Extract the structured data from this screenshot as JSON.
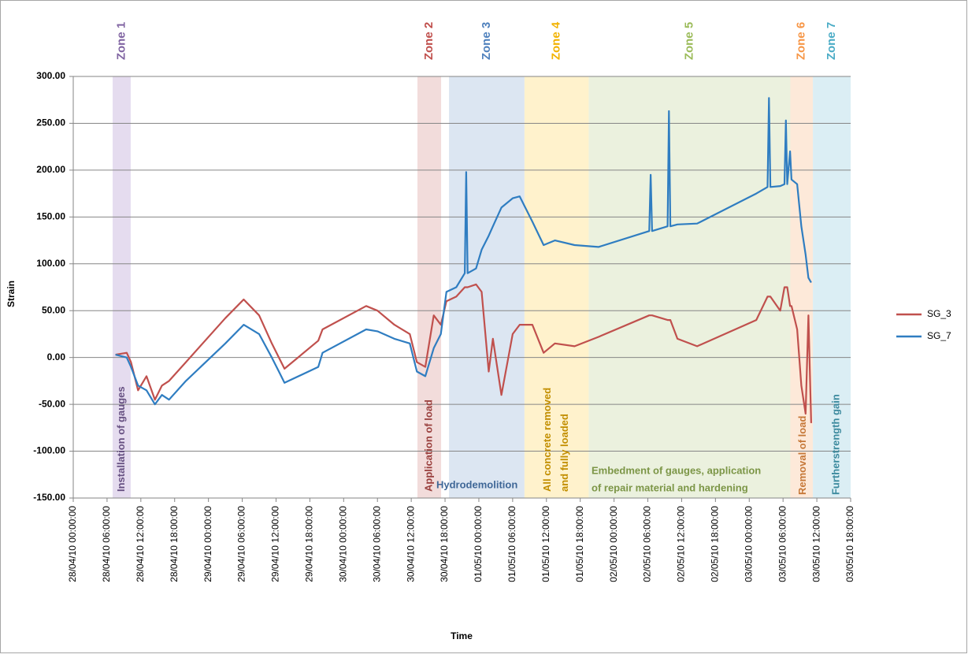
{
  "chart_data": {
    "type": "line",
    "x_label": "Time",
    "y_label": "Strain",
    "xlim": [
      "2010-04-28 00:00",
      "2010-05-03 18:00"
    ],
    "xticks": [
      {
        "value": "2010-04-28 00:00",
        "label": "28/04/10 00:00:00"
      },
      {
        "value": "2010-04-28 06:00",
        "label": "28/04/10 06:00:00"
      },
      {
        "value": "2010-04-28 12:00",
        "label": "28/04/10 12:00:00"
      },
      {
        "value": "2010-04-28 18:00",
        "label": "28/04/10 18:00:00"
      },
      {
        "value": "2010-04-29 00:00",
        "label": "29/04/10 00:00:00"
      },
      {
        "value": "2010-04-29 06:00",
        "label": "29/04/10 06:00:00"
      },
      {
        "value": "2010-04-29 12:00",
        "label": "29/04/10 12:00:00"
      },
      {
        "value": "2010-04-29 18:00",
        "label": "29/04/10 18:00:00"
      },
      {
        "value": "2010-04-30 00:00",
        "label": "30/04/10 00:00:00"
      },
      {
        "value": "2010-04-30 06:00",
        "label": "30/04/10 06:00:00"
      },
      {
        "value": "2010-04-30 12:00",
        "label": "30/04/10 12:00:00"
      },
      {
        "value": "2010-04-30 18:00",
        "label": "30/04/10 18:00:00"
      },
      {
        "value": "2010-05-01 00:00",
        "label": "01/05/10 00:00:00"
      },
      {
        "value": "2010-05-01 06:00",
        "label": "01/05/10 06:00:00"
      },
      {
        "value": "2010-05-01 12:00",
        "label": "01/05/10 12:00:00"
      },
      {
        "value": "2010-05-01 18:00",
        "label": "01/05/10 18:00:00"
      },
      {
        "value": "2010-05-02 00:00",
        "label": "02/05/10 00:00:00"
      },
      {
        "value": "2010-05-02 06:00",
        "label": "02/05/10 06:00:00"
      },
      {
        "value": "2010-05-02 12:00",
        "label": "02/05/10 12:00:00"
      },
      {
        "value": "2010-05-02 18:00",
        "label": "02/05/10 18:00:00"
      },
      {
        "value": "2010-05-03 00:00",
        "label": "03/05/10 00:00:00"
      },
      {
        "value": "2010-05-03 06:00",
        "label": "03/05/10 06:00:00"
      },
      {
        "value": "2010-05-03 12:00",
        "label": "03/05/10 12:00:00"
      },
      {
        "value": "2010-05-03 18:00",
        "label": "03/05/10 18:00:00"
      }
    ],
    "ylim": [
      -150,
      300
    ],
    "yticks": [
      {
        "value": -150,
        "label": "-150.00"
      },
      {
        "value": -100,
        "label": "-100.00"
      },
      {
        "value": -50,
        "label": "-50.00"
      },
      {
        "value": 0,
        "label": "0.00"
      },
      {
        "value": 50,
        "label": "50.00"
      },
      {
        "value": 100,
        "label": "100.00"
      },
      {
        "value": 150,
        "label": "150.00"
      },
      {
        "value": 200,
        "label": "200.00"
      },
      {
        "value": 250,
        "label": "250.00"
      },
      {
        "value": 300,
        "label": "300.00"
      }
    ],
    "grid": true,
    "legend": "right",
    "zones": [
      {
        "label": "Zone 1",
        "start": "2010-04-28 07:00",
        "end": "2010-04-28 10:12",
        "color": "#e5dcef",
        "text_color": "#8064a2",
        "annotation": [
          "Installation of gauges"
        ]
      },
      {
        "label": "Zone 2",
        "start": "2010-04-30 13:06",
        "end": "2010-04-30 17:18",
        "color": "#f2dcdb",
        "text_color": "#c0504d",
        "annotation": [
          "Application of load"
        ]
      },
      {
        "label": "Zone 3",
        "start": "2010-04-30 18:42",
        "end": "2010-05-01 08:06",
        "color": "#dce6f2",
        "text_color": "#4f81bd",
        "annotation": [
          "Hydrodemolition"
        ]
      },
      {
        "label": "Zone 4",
        "start": "2010-05-01 08:06",
        "end": "2010-05-01 19:30",
        "color": "#fff2cc",
        "text_color": "#f2b200",
        "annotation": [
          "All concrete removed",
          "and fully loaded"
        ]
      },
      {
        "label": "Zone 5",
        "start": "2010-05-01 19:30",
        "end": "2010-05-03 07:18",
        "color": "#ebf1de",
        "text_color": "#9bbb59",
        "annotation": [
          "Embedment of gauges, application",
          "of repair material and hardening"
        ]
      },
      {
        "label": "Zone 6",
        "start": "2010-05-03 07:18",
        "end": "2010-05-03 11:18",
        "color": "#fde9d9",
        "text_color": "#f79646",
        "annotation": [
          "Removal of load"
        ]
      },
      {
        "label": "Zone 7",
        "start": "2010-05-03 11:18",
        "end": "2010-05-03 18:00",
        "color": "#dbeef4",
        "text_color": "#4bacc6",
        "annotation": [
          "Furtherstrength gain"
        ]
      }
    ],
    "x": [
      "2010-04-28 07:30",
      "2010-04-28 09:30",
      "2010-04-28 10:15",
      "2010-04-28 11:30",
      "2010-04-28 13:00",
      "2010-04-28 14:30",
      "2010-04-28 15:45",
      "2010-04-28 17:00",
      "2010-04-28 20:00",
      "2010-04-29 03:00",
      "2010-04-29 06:15",
      "2010-04-29 09:00",
      "2010-04-29 11:15",
      "2010-04-29 12:30",
      "2010-04-29 13:30",
      "2010-04-29 19:30",
      "2010-04-29 20:15",
      "2010-04-30 04:00",
      "2010-04-30 06:00",
      "2010-04-30 09:00",
      "2010-04-30 11:45",
      "2010-04-30 13:00",
      "2010-04-30 14:30",
      "2010-04-30 16:00",
      "2010-04-30 17:15",
      "2010-04-30 18:15",
      "2010-04-30 20:00",
      "2010-04-30 21:30",
      "2010-04-30 21:45",
      "2010-04-30 22:00",
      "2010-04-30 23:30",
      "2010-05-01 00:30",
      "2010-05-01 01:45",
      "2010-05-01 02:30",
      "2010-05-01 04:00",
      "2010-05-01 06:00",
      "2010-05-01 07:15",
      "2010-05-01 09:30",
      "2010-05-01 11:30",
      "2010-05-01 13:30",
      "2010-05-01 17:00",
      "2010-05-01 21:15",
      "2010-05-02 06:15",
      "2010-05-02 06:30",
      "2010-05-02 06:45",
      "2010-05-02 09:30",
      "2010-05-02 09:45",
      "2010-05-02 10:00",
      "2010-05-02 11:15",
      "2010-05-02 14:45",
      "2010-05-03 01:15",
      "2010-05-03 03:15",
      "2010-05-03 03:30",
      "2010-05-03 03:45",
      "2010-05-03 05:30",
      "2010-05-03 06:15",
      "2010-05-03 06:30",
      "2010-05-03 06:45",
      "2010-05-03 07:15",
      "2010-05-03 07:30",
      "2010-05-03 08:30",
      "2010-05-03 09:15",
      "2010-05-03 10:00",
      "2010-05-03 10:30",
      "2010-05-03 11:00"
    ],
    "series": [
      {
        "name": "SG_3",
        "color": "#c0504d",
        "values": [
          3,
          5,
          -5,
          -35,
          -20,
          -45,
          -30,
          -25,
          -5,
          42,
          62,
          45,
          15,
          0,
          -12,
          18,
          30,
          55,
          50,
          35,
          25,
          -5,
          -10,
          45,
          35,
          60,
          65,
          75,
          75,
          75,
          78,
          70,
          -15,
          20,
          -40,
          25,
          35,
          35,
          5,
          15,
          12,
          22,
          45,
          45,
          45,
          40,
          40,
          40,
          20,
          12,
          40,
          65,
          65,
          65,
          50,
          75,
          75,
          75,
          55,
          55,
          30,
          -30,
          -60,
          45,
          -70
        ]
      },
      {
        "name": "SG_7",
        "color": "#2f7dc1",
        "values": [
          3,
          0,
          -10,
          -30,
          -35,
          -50,
          -40,
          -45,
          -25,
          15,
          35,
          25,
          0,
          -15,
          -27,
          -10,
          5,
          30,
          28,
          20,
          15,
          -15,
          -20,
          10,
          25,
          70,
          75,
          90,
          198,
          90,
          95,
          115,
          130,
          140,
          160,
          170,
          172,
          145,
          120,
          125,
          120,
          118,
          135,
          195,
          135,
          140,
          263,
          140,
          142,
          143,
          175,
          182,
          277,
          182,
          183,
          185,
          253,
          185,
          220,
          190,
          185,
          140,
          110,
          85,
          80
        ]
      }
    ]
  }
}
